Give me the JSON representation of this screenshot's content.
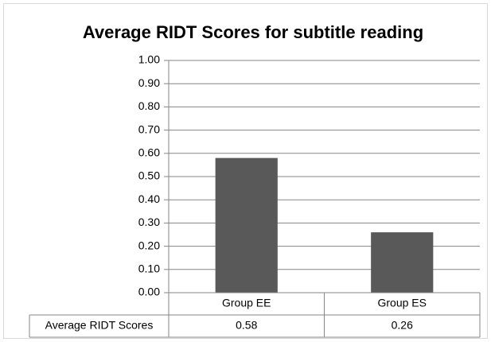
{
  "chart_data": {
    "type": "bar",
    "title": "Average RIDT Scores for subtitle reading",
    "categories": [
      "Group EE",
      "Group ES"
    ],
    "series": [
      {
        "name": "Average RIDT Scores",
        "color": "#595959",
        "values": [
          0.58,
          0.26
        ]
      }
    ],
    "ylim": [
      0,
      1
    ],
    "yticks": [
      {
        "value": 0,
        "label": "0.00"
      },
      {
        "value": 0.1,
        "label": "0.10"
      },
      {
        "value": 0.2,
        "label": "0.20"
      },
      {
        "value": 0.3,
        "label": "0.30"
      },
      {
        "value": 0.4,
        "label": "0.40"
      },
      {
        "value": 0.5,
        "label": "0.50"
      },
      {
        "value": 0.6,
        "label": "0.60"
      },
      {
        "value": 0.7,
        "label": "0.70"
      },
      {
        "value": 0.8,
        "label": "0.80"
      },
      {
        "value": 0.9,
        "label": "0.90"
      },
      {
        "value": 1,
        "label": "1.00"
      }
    ],
    "grid": true,
    "data_table": true
  }
}
